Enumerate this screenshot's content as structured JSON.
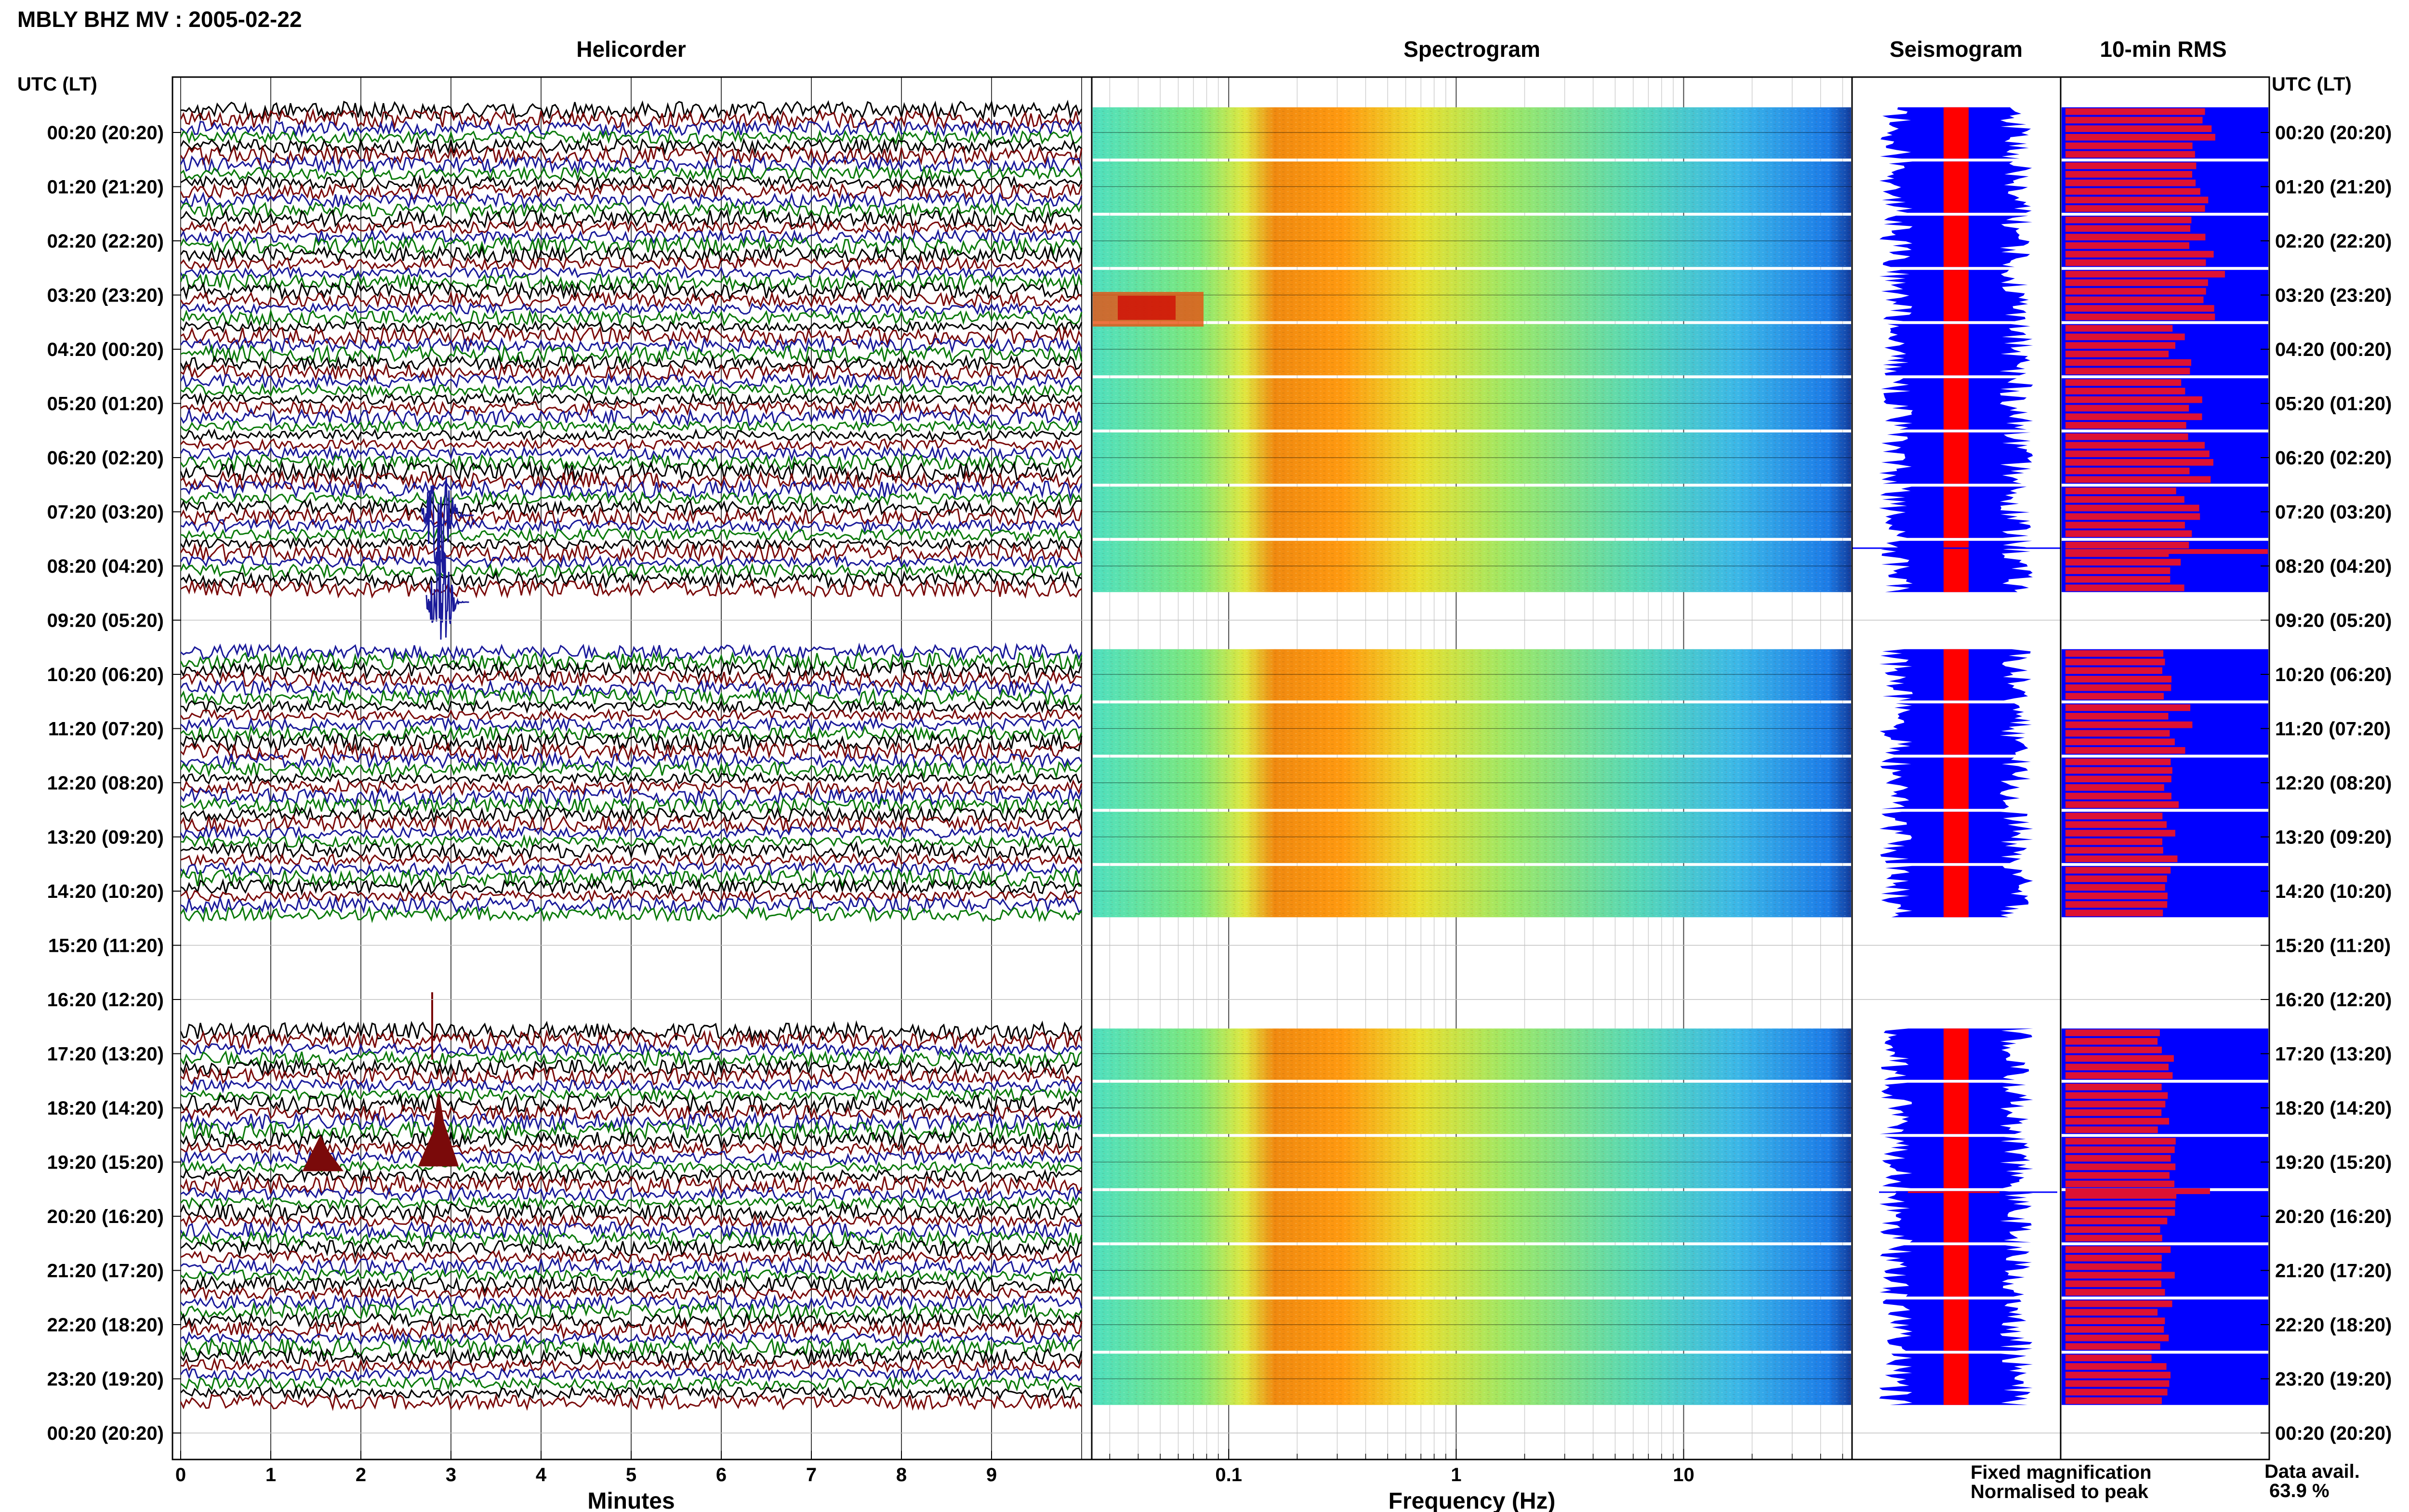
{
  "header": {
    "title": "MBLY BHZ MV : 2005-02-22"
  },
  "panels": {
    "helicorder": "Helicorder",
    "spectrogram": "Spectrogram",
    "seismogram": "Seismogram",
    "rms": "10-min RMS"
  },
  "axes": {
    "left_unit": "UTC (LT)",
    "right_unit": "UTC (LT)",
    "minutes_label": "Minutes",
    "frequency_label": "Frequency (Hz)",
    "minute_ticks": [
      "0",
      "1",
      "2",
      "3",
      "4",
      "5",
      "6",
      "7",
      "8",
      "9"
    ],
    "freq_ticks": [
      "0.1",
      "1",
      "10"
    ]
  },
  "rows": [
    {
      "time": "00:20 (20:20)",
      "data": true,
      "rms": 0.7
    },
    {
      "time": "01:20 (21:20)",
      "data": true,
      "rms": 0.71
    },
    {
      "time": "02:20 (22:20)",
      "data": true,
      "rms": 0.7
    },
    {
      "time": "03:20 (23:20)",
      "data": true,
      "rms": 0.76
    },
    {
      "time": "04:20 (00:20)",
      "data": true,
      "rms": 0.58
    },
    {
      "time": "05:20 (01:20)",
      "data": true,
      "rms": 0.64
    },
    {
      "time": "06:20 (02:20)",
      "data": true,
      "rms": 0.68
    },
    {
      "time": "07:20 (03:20)",
      "data": true,
      "rms": 0.62
    },
    {
      "time": "08:20 (04:20)",
      "data": true,
      "rms": 0.58
    },
    {
      "time": "09:20 (05:20)",
      "data": false,
      "rms": 0
    },
    {
      "time": "10:20 (06:20)",
      "data": true,
      "rms": 0.55
    },
    {
      "time": "11:20 (07:20)",
      "data": true,
      "rms": 0.58
    },
    {
      "time": "12:20 (08:20)",
      "data": true,
      "rms": 0.55
    },
    {
      "time": "13:20 (09:20)",
      "data": true,
      "rms": 0.54
    },
    {
      "time": "14:20 (10:20)",
      "data": true,
      "rms": 0.52
    },
    {
      "time": "15:20 (11:20)",
      "data": false,
      "rms": 0
    },
    {
      "time": "16:20 (12:20)",
      "data": false,
      "rms": 0
    },
    {
      "time": "17:20 (13:20)",
      "data": true,
      "rms": 0.5
    },
    {
      "time": "18:20 (14:20)",
      "data": true,
      "rms": 0.5
    },
    {
      "time": "19:20 (15:20)",
      "data": true,
      "rms": 0.52
    },
    {
      "time": "20:20 (16:20)",
      "data": true,
      "rms": 0.52
    },
    {
      "time": "21:20 (17:20)",
      "data": true,
      "rms": 0.52
    },
    {
      "time": "22:20 (18:20)",
      "data": true,
      "rms": 0.52
    },
    {
      "time": "23:20 (19:20)",
      "data": true,
      "rms": 0.48
    },
    {
      "time": "00:20 (20:20)",
      "data": false,
      "rms": 0
    }
  ],
  "legend": {
    "fixed": "Fixed magnification",
    "normalised": "Normalised to peak",
    "fixed_color": "#0000ff",
    "normalised_color": "#ff0000"
  },
  "availability": {
    "label": "Data avail.",
    "value": "63.9 %"
  },
  "colors": {
    "trace_black": "#000000",
    "trace_red": "#7a0a0a",
    "trace_blue": "#1a1a9a",
    "trace_green": "#0a7a0a",
    "rms_blue": "#0000ff",
    "rms_red": "#dd1133",
    "seismo_blue": "#0000ff",
    "seismo_red": "#ff0000"
  }
}
